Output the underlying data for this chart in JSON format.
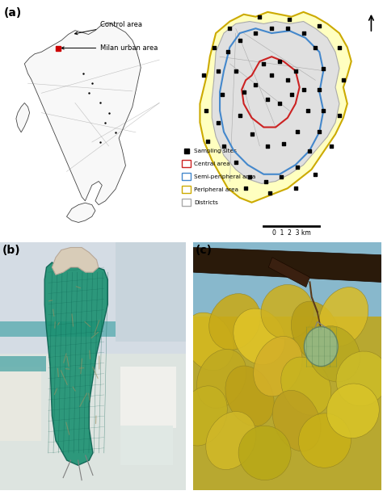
{
  "panel_a_label": "(a)",
  "panel_b_label": "(b)",
  "panel_c_label": "(c)",
  "italy_map_annotation1": "Control area",
  "italy_map_annotation2": "Milan urban area",
  "legend_items": [
    "Sampling sites",
    "Central area",
    "Semi-peripheral area",
    "Peripheral area",
    "Districts"
  ],
  "legend_colors": [
    "black",
    "#cc2222",
    "#4488cc",
    "#ccaa00",
    "#aaaaaa"
  ],
  "scale_bar_label": "0  1  2  3 km",
  "background_color": "#ffffff",
  "fig_width": 4.74,
  "fig_height": 6.13,
  "italy_outline_color": "#444444",
  "italy_fill_color": "#f8f8f8",
  "milan_dot_color": "#cc0000",
  "photo_b_bg_top": "#d0d8e0",
  "photo_b_bg_mid": "#b8ccd8",
  "photo_b_bench": "#dcdcdc",
  "photo_b_bag_color": "#1e8c6e",
  "photo_b_hand_color": "#d4c0a0",
  "photo_c_sky": "#7ab8d0",
  "photo_c_branch": "#3a2818",
  "photo_c_leaves": "#c8b030",
  "photo_c_lichen": "#8ab890"
}
